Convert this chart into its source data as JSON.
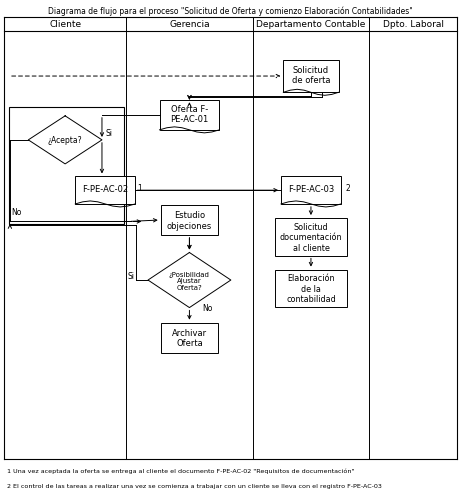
{
  "title": "Diagrama de flujo para el proceso \"Solicitud de Oferta y comienzo Elaboración Contabilidades\"",
  "columns": [
    "Cliente",
    "Gerencia",
    "Departamento Contable",
    "Dpto. Laboral"
  ],
  "footnote1": "1 Una vez aceptada la oferta se entrega al cliente el documento F-PE-AC-02 \"Requisitos de documentación\"",
  "footnote2": "2 El control de las tareas a realizar una vez se comienza a trabajar con un cliente se lleva con el registro F-PE-AC-03",
  "bg_color": "#ffffff"
}
